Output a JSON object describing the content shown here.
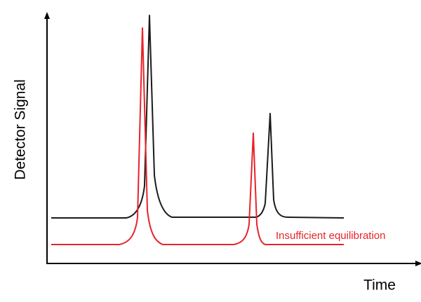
{
  "axes": {
    "y_label": "Detector Signal",
    "x_label": "Time"
  },
  "annotation": "Insufficient equilibration"
}
